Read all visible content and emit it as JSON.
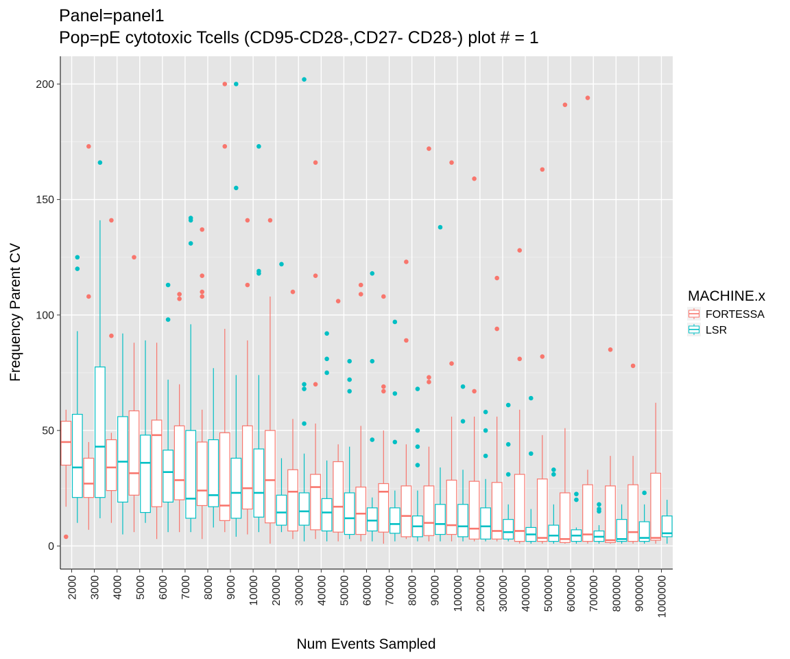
{
  "chart_data": {
    "type": "boxplot",
    "title": "Panel=panel1",
    "subtitle": "Pop=pE cytotoxic Tcells (CD95-CD28-,CD27-  CD28-) plot # = 1",
    "xlabel": "Num Events Sampled",
    "ylabel": "Frequency Parent CV",
    "ylim": [
      -10,
      212
    ],
    "yticks": [
      0,
      50,
      100,
      150,
      200
    ],
    "grid": true,
    "legend": {
      "title": "MACHINE.x",
      "position": "right"
    },
    "categories": [
      "2000",
      "3000",
      "4000",
      "5000",
      "6000",
      "7000",
      "8000",
      "9000",
      "10000",
      "20000",
      "30000",
      "40000",
      "50000",
      "60000",
      "70000",
      "80000",
      "90000",
      "100000",
      "200000",
      "300000",
      "400000",
      "500000",
      "600000",
      "700000",
      "800000",
      "900000",
      "1000000"
    ],
    "series": [
      {
        "name": "FORTESSA",
        "color": "#F8766D",
        "boxes": [
          {
            "lo": 17,
            "q1": 35,
            "med": 45,
            "q3": 54,
            "hi": 59,
            "out": [
              4
            ]
          },
          {
            "lo": 7,
            "q1": 21,
            "med": 27,
            "q3": 38,
            "hi": 45,
            "out": [
              108,
              173
            ]
          },
          {
            "lo": 10,
            "q1": 24,
            "med": 34,
            "q3": 46,
            "hi": 49,
            "out": [
              91,
              141
            ]
          },
          {
            "lo": 6,
            "q1": 22,
            "med": 31.5,
            "q3": 58.5,
            "hi": 88,
            "out": [
              125
            ]
          },
          {
            "lo": 3,
            "q1": 17,
            "med": 48,
            "q3": 54.5,
            "hi": 88,
            "out": []
          },
          {
            "lo": 6,
            "q1": 20,
            "med": 28.5,
            "q3": 52,
            "hi": 70,
            "out": [
              107,
              109
            ]
          },
          {
            "lo": 3,
            "q1": 17.5,
            "med": 24,
            "q3": 45,
            "hi": 59,
            "out": [
              108,
              110,
              117,
              137
            ]
          },
          {
            "lo": 6,
            "q1": 11,
            "med": 17.5,
            "q3": 49,
            "hi": 94,
            "out": [
              173,
              200
            ]
          },
          {
            "lo": 5,
            "q1": 16,
            "med": 25,
            "q3": 52,
            "hi": 89,
            "out": [
              113,
              141
            ]
          },
          {
            "lo": 1,
            "q1": 10,
            "med": 28.5,
            "q3": 50,
            "hi": 108,
            "out": [
              141
            ]
          },
          {
            "lo": 3,
            "q1": 6.5,
            "med": 23.5,
            "q3": 33,
            "hi": 55,
            "out": [
              110
            ]
          },
          {
            "lo": 3,
            "q1": 7,
            "med": 25.5,
            "q3": 31,
            "hi": 53,
            "out": [
              70,
              117,
              166
            ]
          },
          {
            "lo": 2,
            "q1": 6,
            "med": 17,
            "q3": 36.5,
            "hi": 44,
            "out": [
              106
            ]
          },
          {
            "lo": 2,
            "q1": 5,
            "med": 14,
            "q3": 25.5,
            "hi": 52,
            "out": [
              109,
              113
            ]
          },
          {
            "lo": 1,
            "q1": 6,
            "med": 23.5,
            "q3": 27,
            "hi": 50,
            "out": [
              67,
              69,
              108
            ]
          },
          {
            "lo": 3,
            "q1": 4,
            "med": 13,
            "q3": 26,
            "hi": 44,
            "out": [
              89,
              123
            ]
          },
          {
            "lo": 2,
            "q1": 4.5,
            "med": 10,
            "q3": 26,
            "hi": 43,
            "out": [
              71,
              73,
              172
            ]
          },
          {
            "lo": 2,
            "q1": 5,
            "med": 9,
            "q3": 28.5,
            "hi": 56,
            "out": [
              79,
              166
            ]
          },
          {
            "lo": 2,
            "q1": 3,
            "med": 7.5,
            "q3": 28,
            "hi": 56,
            "out": [
              67,
              159
            ]
          },
          {
            "lo": 2,
            "q1": 3,
            "med": 6.5,
            "q3": 27.5,
            "hi": 56,
            "out": [
              94,
              116
            ]
          },
          {
            "lo": 1,
            "q1": 2,
            "med": 6.5,
            "q3": 31,
            "hi": 59,
            "out": [
              81,
              128
            ]
          },
          {
            "lo": 1,
            "q1": 2,
            "med": 3.5,
            "q3": 29,
            "hi": 48,
            "out": [
              82,
              163
            ]
          },
          {
            "lo": 1,
            "q1": 1.5,
            "med": 3,
            "q3": 23,
            "hi": 51,
            "out": [
              191
            ]
          },
          {
            "lo": 1,
            "q1": 2,
            "med": 5,
            "q3": 26.5,
            "hi": 33,
            "out": [
              194
            ]
          },
          {
            "lo": 1,
            "q1": 1.5,
            "med": 2.5,
            "q3": 26,
            "hi": 39,
            "out": [
              85
            ]
          },
          {
            "lo": 1,
            "q1": 2,
            "med": 6,
            "q3": 26.5,
            "hi": 39,
            "out": [
              78
            ]
          },
          {
            "lo": 1,
            "q1": 2.5,
            "med": 3.5,
            "q3": 31.5,
            "hi": 62,
            "out": []
          }
        ]
      },
      {
        "name": "LSR",
        "color": "#00BFC4",
        "boxes": [
          {
            "lo": 10,
            "q1": 21,
            "med": 34,
            "q3": 57,
            "hi": 93,
            "out": [
              120,
              125
            ]
          },
          {
            "lo": 12,
            "q1": 21,
            "med": 43,
            "q3": 77.5,
            "hi": 141,
            "out": [
              166
            ]
          },
          {
            "lo": 5,
            "q1": 19,
            "med": 36.5,
            "q3": 56,
            "hi": 92,
            "out": []
          },
          {
            "lo": 10,
            "q1": 14.5,
            "med": 36,
            "q3": 48,
            "hi": 89,
            "out": []
          },
          {
            "lo": 6,
            "q1": 19,
            "med": 32,
            "q3": 41.5,
            "hi": 72,
            "out": [
              98,
              113
            ]
          },
          {
            "lo": 6,
            "q1": 12,
            "med": 20.5,
            "q3": 50,
            "hi": 96,
            "out": [
              131,
              141,
              142
            ]
          },
          {
            "lo": 8,
            "q1": 17,
            "med": 22,
            "q3": 46,
            "hi": 77,
            "out": []
          },
          {
            "lo": 4,
            "q1": 12,
            "med": 23,
            "q3": 38,
            "hi": 74,
            "out": [
              155,
              200
            ]
          },
          {
            "lo": 6,
            "q1": 12.5,
            "med": 23,
            "q3": 42,
            "hi": 74,
            "out": [
              118,
              119,
              173
            ]
          },
          {
            "lo": 6,
            "q1": 9,
            "med": 14.5,
            "q3": 22,
            "hi": 38,
            "out": [
              122
            ]
          },
          {
            "lo": 2,
            "q1": 9,
            "med": 15,
            "q3": 23,
            "hi": 40,
            "out": [
              53,
              68,
              70,
              202
            ]
          },
          {
            "lo": 2,
            "q1": 6.5,
            "med": 14.5,
            "q3": 20.5,
            "hi": 37,
            "out": [
              75,
              81,
              92
            ]
          },
          {
            "lo": 3,
            "q1": 5,
            "med": 12,
            "q3": 23,
            "hi": 43,
            "out": [
              67,
              72,
              80
            ]
          },
          {
            "lo": 2,
            "q1": 6.5,
            "med": 11,
            "q3": 16.5,
            "hi": 21,
            "out": [
              46,
              80,
              118
            ]
          },
          {
            "lo": 2,
            "q1": 5.5,
            "med": 9.5,
            "q3": 16.5,
            "hi": 24,
            "out": [
              45,
              66,
              97
            ]
          },
          {
            "lo": 2,
            "q1": 4,
            "med": 8.5,
            "q3": 13,
            "hi": 24,
            "out": [
              35,
              43,
              50,
              68
            ]
          },
          {
            "lo": 2,
            "q1": 5,
            "med": 9.5,
            "q3": 18,
            "hi": 34,
            "out": [
              138
            ]
          },
          {
            "lo": 2,
            "q1": 4,
            "med": 8.5,
            "q3": 18,
            "hi": 33,
            "out": [
              54,
              69
            ]
          },
          {
            "lo": 2,
            "q1": 3,
            "med": 8.5,
            "q3": 16.5,
            "hi": 29,
            "out": [
              39,
              50,
              58
            ]
          },
          {
            "lo": 2,
            "q1": 3,
            "med": 6,
            "q3": 11.5,
            "hi": 18,
            "out": [
              31,
              44,
              61
            ]
          },
          {
            "lo": 1,
            "q1": 2,
            "med": 5,
            "q3": 8,
            "hi": 16,
            "out": [
              40,
              64
            ]
          },
          {
            "lo": 1,
            "q1": 2,
            "med": 4.5,
            "q3": 9,
            "hi": 18,
            "out": [
              31,
              33
            ]
          },
          {
            "lo": 1,
            "q1": 2,
            "med": 4.5,
            "q3": 7,
            "hi": 8,
            "out": [
              20,
              22.5
            ]
          },
          {
            "lo": 1,
            "q1": 2,
            "med": 4,
            "q3": 6.5,
            "hi": 9,
            "out": [
              15,
              16,
              18
            ]
          },
          {
            "lo": 1,
            "q1": 2,
            "med": 3,
            "q3": 11.5,
            "hi": 18,
            "out": []
          },
          {
            "lo": 1,
            "q1": 2,
            "med": 3.5,
            "q3": 10.5,
            "hi": 18,
            "out": [
              23
            ]
          },
          {
            "lo": 1,
            "q1": 4,
            "med": 5.5,
            "q3": 13,
            "hi": 20,
            "out": []
          }
        ]
      }
    ]
  }
}
